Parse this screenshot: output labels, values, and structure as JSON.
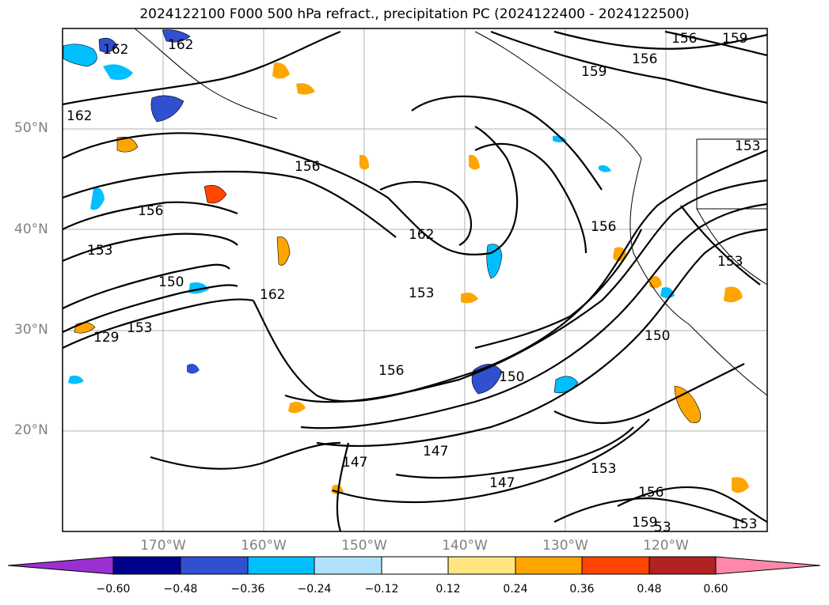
{
  "title": "2024122100 F000 500 hPa refract., precipitation PC (2024122400 - 2024122500)",
  "lat_labels": [
    "50°N",
    "40°N",
    "30°N",
    "20°N"
  ],
  "lon_labels": [
    "170°W",
    "160°W",
    "150°W",
    "140°W",
    "130°W",
    "120°W"
  ],
  "contour_labels": [
    "162",
    "162",
    "156",
    "159",
    "156",
    "159",
    "162",
    "153",
    "156",
    "156",
    "162",
    "153",
    "150",
    "162",
    "153",
    "156",
    "150",
    "129",
    "153",
    "153",
    "150",
    "156",
    "147",
    "147",
    "147",
    "153",
    "156",
    "159",
    "153",
    "53"
  ],
  "colorbar": {
    "ticks": [
      "−0.60",
      "−0.48",
      "−0.36",
      "−0.24",
      "−0.12",
      "0.12",
      "0.24",
      "0.36",
      "0.48",
      "0.60"
    ],
    "colors": [
      "#9b30d0",
      "#00008b",
      "#3050d0",
      "#00bfff",
      "#b0e2ff",
      "#ffffff",
      "#ffe680",
      "#ffa500",
      "#ff4500",
      "#b22222",
      "#ff88aa"
    ]
  }
}
